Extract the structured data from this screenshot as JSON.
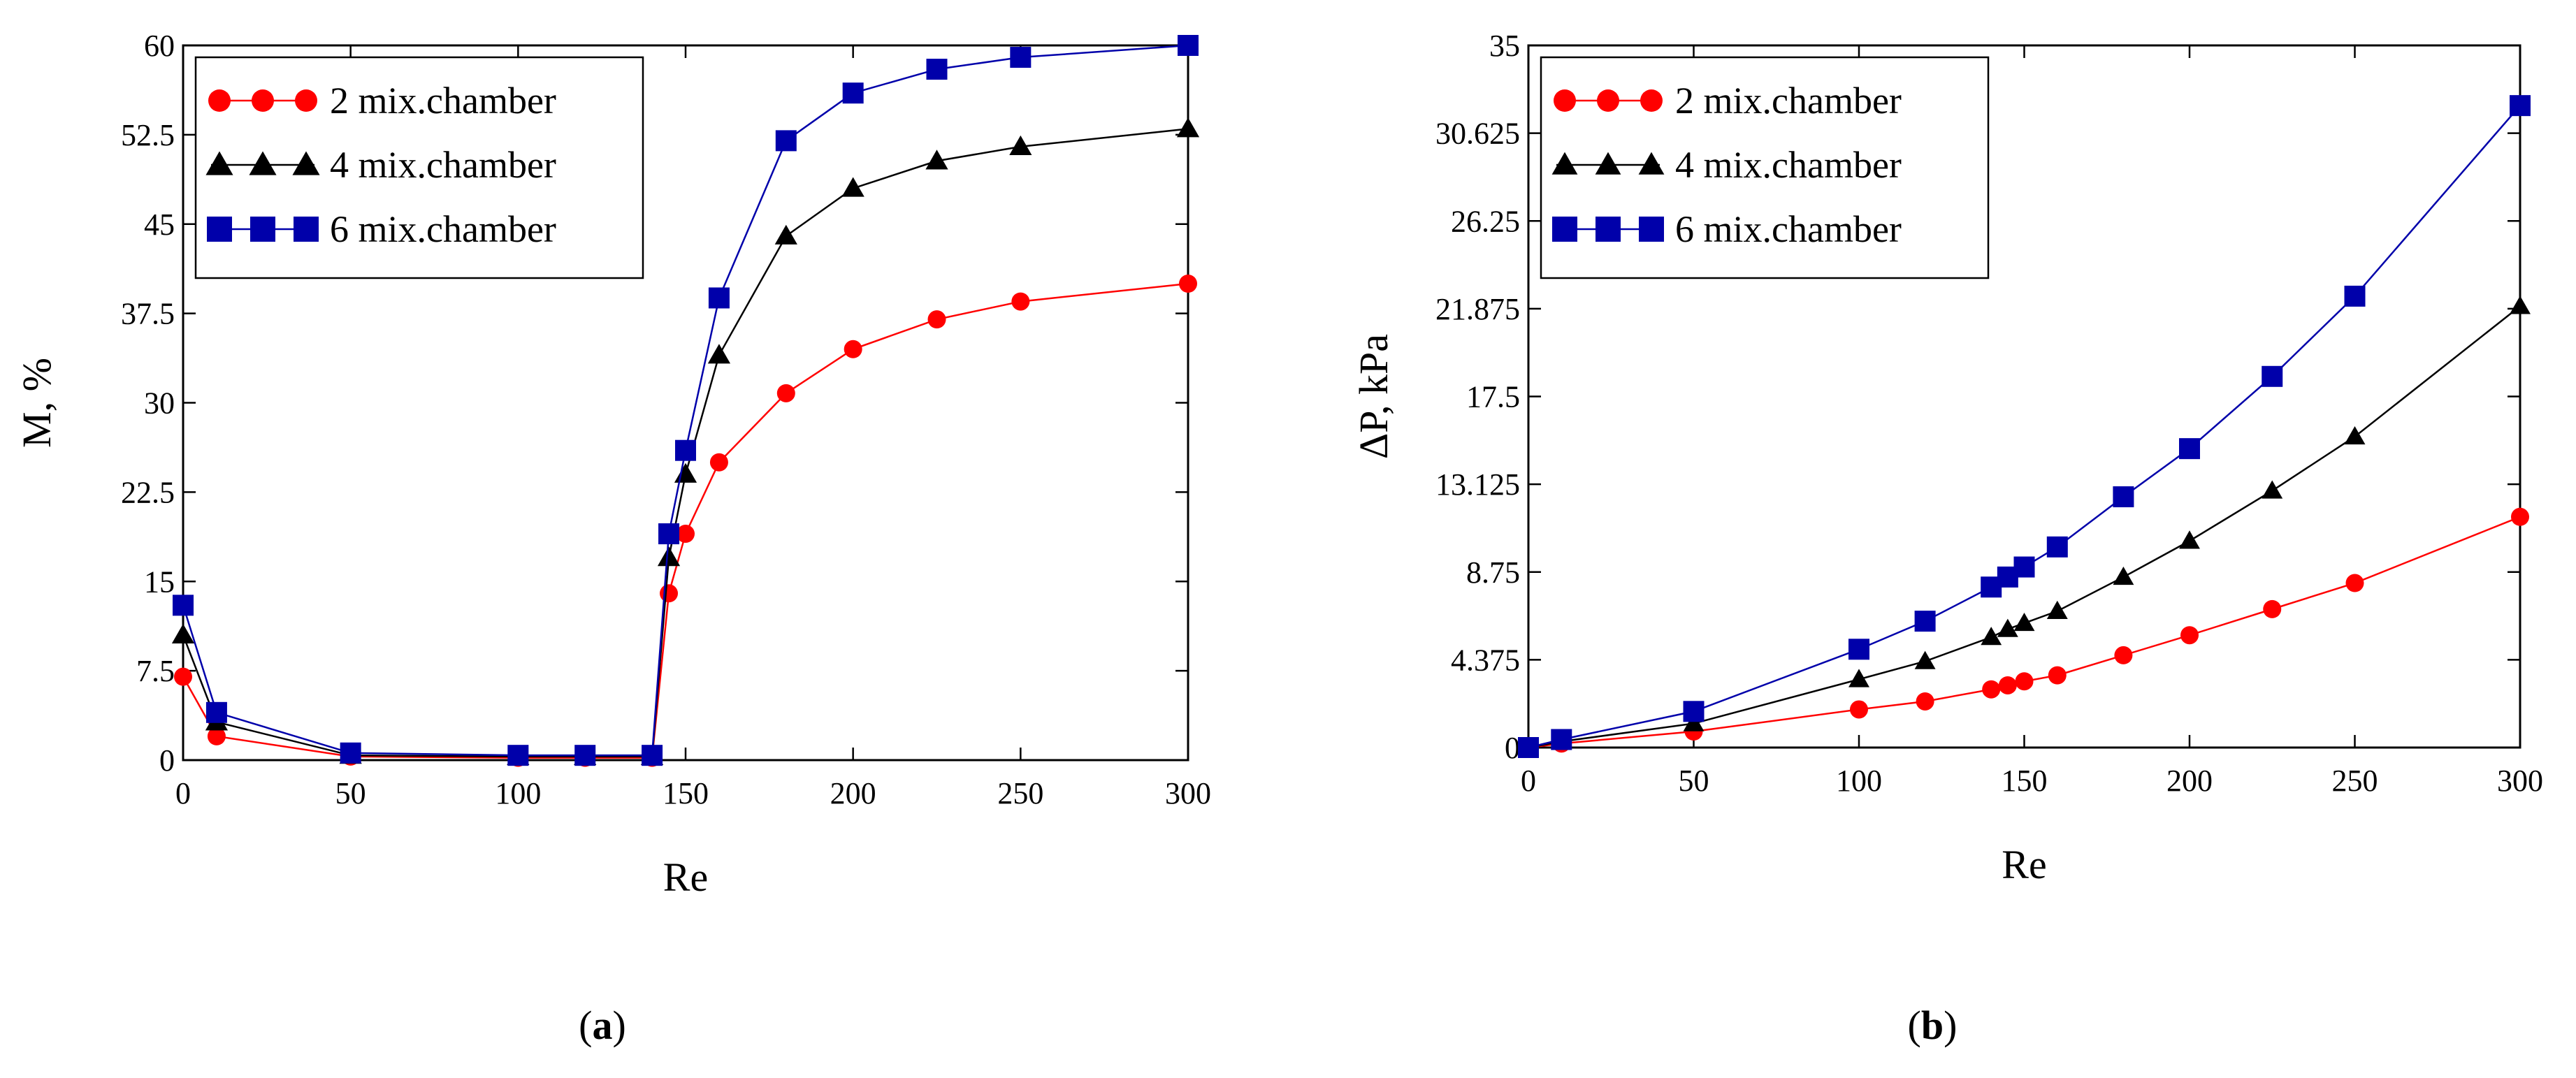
{
  "chart_data": [
    {
      "id": "a",
      "type": "line",
      "caption_letter": "a",
      "caption_open": "(",
      "caption_close": ")",
      "xlabel": "Re",
      "ylabel": "M, %",
      "xlim": [
        0,
        300
      ],
      "ylim": [
        0,
        60
      ],
      "x_ticks": [
        0,
        50,
        100,
        150,
        200,
        250,
        300
      ],
      "y_ticks": [
        0,
        7.5,
        15,
        22.5,
        30,
        37.5,
        45,
        52.5,
        60
      ],
      "legend_position": "top-left",
      "series": [
        {
          "name": "2 mix.chamber",
          "marker": "circle",
          "color": "#ff0000",
          "x": [
            0,
            10,
            50,
            100,
            120,
            140,
            145,
            150,
            160,
            180,
            200,
            225,
            250,
            300
          ],
          "y": [
            7,
            2,
            0.3,
            0.2,
            0.2,
            0.2,
            14,
            19,
            25,
            30.8,
            34.5,
            37,
            38.5,
            40
          ]
        },
        {
          "name": "4 mix.chamber",
          "marker": "triangle",
          "color": "#000000",
          "x": [
            0,
            10,
            50,
            100,
            120,
            140,
            145,
            150,
            160,
            180,
            200,
            225,
            250,
            300
          ],
          "y": [
            10.5,
            3.2,
            0.4,
            0.3,
            0.3,
            0.3,
            17,
            24,
            34,
            44,
            48,
            50.3,
            51.5,
            53
          ]
        },
        {
          "name": "6 mix.chamber",
          "marker": "square",
          "color": "#0000aa",
          "x": [
            0,
            10,
            50,
            100,
            120,
            140,
            145,
            150,
            160,
            180,
            200,
            225,
            250,
            300
          ],
          "y": [
            13,
            4,
            0.6,
            0.4,
            0.4,
            0.4,
            19,
            26,
            38.8,
            52,
            56,
            58,
            59,
            60
          ]
        }
      ]
    },
    {
      "id": "b",
      "type": "line",
      "caption_letter": "b",
      "caption_open": "(",
      "caption_close": ")",
      "xlabel": "Re",
      "ylabel": "ΔP, kPa",
      "xlim": [
        0,
        300
      ],
      "ylim": [
        0,
        35
      ],
      "x_ticks": [
        0,
        50,
        100,
        150,
        200,
        250,
        300
      ],
      "y_ticks": [
        0,
        4.375,
        8.75,
        13.125,
        17.5,
        21.875,
        26.25,
        30.625,
        35
      ],
      "legend_position": "top-left",
      "series": [
        {
          "name": "2 mix.chamber",
          "marker": "circle",
          "color": "#ff0000",
          "x": [
            0,
            10,
            50,
            100,
            120,
            140,
            145,
            150,
            160,
            180,
            200,
            225,
            250,
            300
          ],
          "y": [
            0,
            0.2,
            0.8,
            1.9,
            2.3,
            2.9,
            3.1,
            3.3,
            3.6,
            4.6,
            5.6,
            6.9,
            8.2,
            11.5
          ]
        },
        {
          "name": "4 mix.chamber",
          "marker": "triangle",
          "color": "#000000",
          "x": [
            0,
            10,
            50,
            100,
            120,
            140,
            145,
            150,
            160,
            180,
            200,
            225,
            250,
            300
          ],
          "y": [
            0,
            0.3,
            1.2,
            3.4,
            4.3,
            5.5,
            5.9,
            6.2,
            6.8,
            8.5,
            10.3,
            12.8,
            15.5,
            22
          ]
        },
        {
          "name": "6 mix.chamber",
          "marker": "square",
          "color": "#0000aa",
          "x": [
            0,
            10,
            50,
            100,
            120,
            140,
            145,
            150,
            160,
            180,
            200,
            225,
            250,
            300
          ],
          "y": [
            0,
            0.4,
            1.8,
            4.9,
            6.3,
            8,
            8.5,
            9,
            10,
            12.5,
            14.9,
            18.5,
            22.5,
            32
          ]
        }
      ]
    }
  ]
}
